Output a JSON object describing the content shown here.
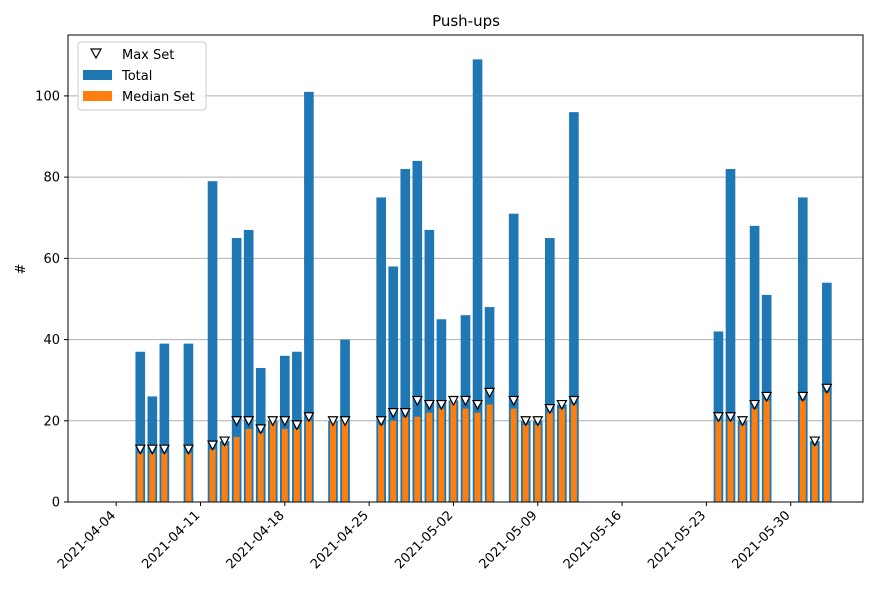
{
  "chart_data": {
    "type": "bar",
    "title": "Push-ups",
    "xlabel": "",
    "ylabel": "#",
    "ylim": [
      0,
      115
    ],
    "xlim": [
      "2021-03-31",
      "2021-06-05"
    ],
    "grid": "y",
    "legend_position": "top-left",
    "y_ticks": [
      0,
      20,
      40,
      60,
      80,
      100
    ],
    "x_ticks": [
      "2021-04-04",
      "2021-04-11",
      "2021-04-18",
      "2021-04-25",
      "2021-05-02",
      "2021-05-09",
      "2021-05-16",
      "2021-05-23",
      "2021-05-30"
    ],
    "colors": {
      "total": "#1f77b4",
      "median": "#ff7f0e",
      "marker_edge": "#000000",
      "marker_fill": "#ffffff",
      "grid": "#b0b0b0"
    },
    "series": [
      {
        "name": "Total",
        "kind": "bar",
        "color": "#1f77b4"
      },
      {
        "name": "Median Set",
        "kind": "bar",
        "color": "#ff7f0e"
      },
      {
        "name": "Max Set",
        "kind": "marker",
        "marker": "triangle-down"
      }
    ],
    "points": [
      {
        "date": "2021-04-06",
        "total": 37,
        "median": 12,
        "max": 13
      },
      {
        "date": "2021-04-07",
        "total": 26,
        "median": 12,
        "max": 13
      },
      {
        "date": "2021-04-08",
        "total": 39,
        "median": 12,
        "max": 13
      },
      {
        "date": "2021-04-10",
        "total": 39,
        "median": 12,
        "max": 13
      },
      {
        "date": "2021-04-12",
        "total": 79,
        "median": 13,
        "max": 14
      },
      {
        "date": "2021-04-13",
        "total": 15,
        "median": 14,
        "max": 15
      },
      {
        "date": "2021-04-14",
        "total": 65,
        "median": 16,
        "max": 20
      },
      {
        "date": "2021-04-15",
        "total": 67,
        "median": 18,
        "max": 20
      },
      {
        "date": "2021-04-16",
        "total": 33,
        "median": 17,
        "max": 18
      },
      {
        "date": "2021-04-17",
        "total": 20,
        "median": 20,
        "max": 20
      },
      {
        "date": "2021-04-18",
        "total": 36,
        "median": 18,
        "max": 20
      },
      {
        "date": "2021-04-19",
        "total": 37,
        "median": 18,
        "max": 19
      },
      {
        "date": "2021-04-20",
        "total": 101,
        "median": 20,
        "max": 21
      },
      {
        "date": "2021-04-22",
        "total": 20,
        "median": 20,
        "max": 20
      },
      {
        "date": "2021-04-23",
        "total": 40,
        "median": 20,
        "max": 20
      },
      {
        "date": "2021-04-26",
        "total": 75,
        "median": 19,
        "max": 20
      },
      {
        "date": "2021-04-27",
        "total": 58,
        "median": 20,
        "max": 22
      },
      {
        "date": "2021-04-28",
        "total": 82,
        "median": 21,
        "max": 22
      },
      {
        "date": "2021-04-29",
        "total": 84,
        "median": 21,
        "max": 25
      },
      {
        "date": "2021-04-30",
        "total": 67,
        "median": 22,
        "max": 24
      },
      {
        "date": "2021-05-01",
        "total": 45,
        "median": 23,
        "max": 24
      },
      {
        "date": "2021-05-02",
        "total": 25,
        "median": 25,
        "max": 25
      },
      {
        "date": "2021-05-03",
        "total": 46,
        "median": 23,
        "max": 25
      },
      {
        "date": "2021-05-04",
        "total": 109,
        "median": 22,
        "max": 24
      },
      {
        "date": "2021-05-05",
        "total": 48,
        "median": 24,
        "max": 27
      },
      {
        "date": "2021-05-07",
        "total": 71,
        "median": 23,
        "max": 25
      },
      {
        "date": "2021-05-08",
        "total": 20,
        "median": 19,
        "max": 20
      },
      {
        "date": "2021-05-09",
        "total": 20,
        "median": 19,
        "max": 20
      },
      {
        "date": "2021-05-10",
        "total": 65,
        "median": 22,
        "max": 23
      },
      {
        "date": "2021-05-11",
        "total": 24,
        "median": 23,
        "max": 24
      },
      {
        "date": "2021-05-12",
        "total": 96,
        "median": 24,
        "max": 25
      },
      {
        "date": "2021-05-24",
        "total": 42,
        "median": 20,
        "max": 21
      },
      {
        "date": "2021-05-25",
        "total": 82,
        "median": 20,
        "max": 21
      },
      {
        "date": "2021-05-26",
        "total": 20,
        "median": 19,
        "max": 20
      },
      {
        "date": "2021-05-27",
        "total": 68,
        "median": 23,
        "max": 24
      },
      {
        "date": "2021-05-28",
        "total": 51,
        "median": 25,
        "max": 26
      },
      {
        "date": "2021-05-31",
        "total": 75,
        "median": 25,
        "max": 26
      },
      {
        "date": "2021-06-01",
        "total": 15,
        "median": 14,
        "max": 15
      },
      {
        "date": "2021-06-02",
        "total": 54,
        "median": 27,
        "max": 28
      }
    ]
  }
}
